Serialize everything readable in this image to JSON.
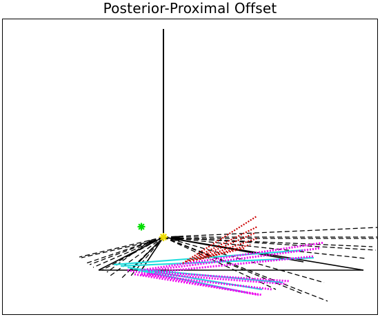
{
  "figure": {
    "title": "Posterior-Proximal Offset"
  },
  "colors": {
    "background": "#ffffff",
    "frame": "#000000",
    "axis_line": "#000000",
    "solid_lines": "#000000",
    "dashed_lines": "#000000",
    "red_dotted": "#cc0000",
    "magenta_dotted": "#ee00ee",
    "cyan_solid": "#22dddd",
    "green_marker": "#00dd00",
    "yellow_marker": "#eedd00",
    "black_markers": "#000000"
  },
  "markers": {
    "green": "asterisk",
    "yellow": "asterisk",
    "black": "square"
  }
}
